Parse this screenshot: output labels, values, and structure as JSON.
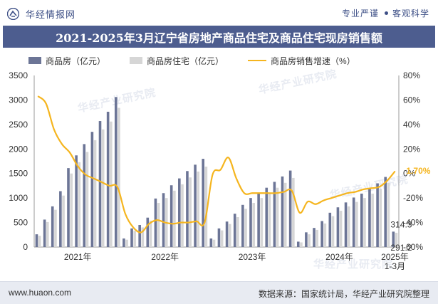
{
  "header": {
    "brand": "华经情报网",
    "slogan_left": "专业严谨",
    "slogan_right": "客观科学",
    "title": "2021-2025年3月辽宁省房地产商品住宅及商品住宅现房销售额"
  },
  "footer": {
    "url": "www.huaon.com",
    "source": "数据来源：国家统计局，华经产业研究院整理"
  },
  "watermarks": [
    "华经产业研究院",
    "华经产业研究院",
    "华经产业研究院",
    "华经产业研究院"
  ],
  "colors": {
    "commercial": "#6c7596",
    "residential": "#d6d6d6",
    "growth": "#f5b51f",
    "title_bg": "#4d5d8f",
    "brand": "#3d4f86"
  },
  "chart_data": {
    "type": "bar",
    "title": "2021-2025年3月辽宁省房地产商品住宅及商品住宅现房销售额",
    "categories": [
      "2021-01/02",
      "2021-03",
      "2021-04",
      "2021-05",
      "2021-06",
      "2021-07",
      "2021-08",
      "2021-09",
      "2021-10",
      "2021-11",
      "2021-12",
      "2022-01/02",
      "2022-03",
      "2022-04",
      "2022-05",
      "2022-06",
      "2022-07",
      "2022-08",
      "2022-09",
      "2022-10",
      "2022-11",
      "2022-12",
      "2023-01/02",
      "2023-03",
      "2023-04",
      "2023-05",
      "2023-06",
      "2023-07",
      "2023-08",
      "2023-09",
      "2023-10",
      "2023-11",
      "2023-12",
      "2024-01/02",
      "2024-03",
      "2024-04",
      "2024-05",
      "2024-06",
      "2024-07",
      "2024-08",
      "2024-09",
      "2024-10",
      "2024-11",
      "2024-12",
      "2025-01/02",
      "2025-03"
    ],
    "series": [
      {
        "name": "商品房（亿元）",
        "type": "bar",
        "axis": "left",
        "values": [
          260,
          560,
          830,
          1140,
          1610,
          1870,
          2100,
          2350,
          2570,
          2760,
          3060,
          175,
          380,
          450,
          600,
          990,
          1100,
          1260,
          1400,
          1550,
          1680,
          1800,
          175,
          380,
          520,
          680,
          860,
          1000,
          1100,
          1210,
          1330,
          1440,
          1560,
          110,
          300,
          390,
          530,
          700,
          810,
          910,
          1010,
          1090,
          1200,
          1300,
          1430,
          314.3
        ]
      },
      {
        "name": "商品房住宅（亿元）",
        "type": "bar",
        "axis": "left",
        "values": [
          230,
          510,
          760,
          1050,
          1500,
          1730,
          1940,
          2180,
          2400,
          2560,
          2840,
          150,
          330,
          400,
          540,
          900,
          1000,
          1150,
          1280,
          1420,
          1540,
          1640,
          150,
          340,
          470,
          610,
          780,
          900,
          1000,
          1100,
          1210,
          1310,
          1410,
          95,
          260,
          350,
          480,
          630,
          740,
          830,
          920,
          1000,
          1090,
          1190,
          1310,
          291.2
        ]
      },
      {
        "name": "商品房销售增速（%）",
        "type": "line",
        "axis": "right",
        "values": [
          63,
          57,
          36,
          24,
          17,
          6,
          -1,
          -4,
          -7,
          -10,
          -11,
          -33,
          -44,
          -48,
          -41,
          -38,
          -40,
          -41,
          -40,
          -40,
          -39,
          -40,
          -1,
          3,
          13,
          -4,
          -16,
          -16,
          -16,
          -16,
          -16,
          -15,
          -14,
          -32,
          -23,
          -25,
          -22,
          -20,
          -18,
          -16,
          -15,
          -13,
          -12,
          -11,
          -6,
          1.7
        ]
      }
    ],
    "xlabel": "",
    "ylabel_left": "",
    "ylabel_right": "",
    "ylim_left": [
      0,
      3500
    ],
    "ylim_right": [
      -60,
      80
    ],
    "yticks_left": [
      "0",
      "500",
      "1000",
      "1500",
      "2000",
      "2500",
      "3000",
      "3500"
    ],
    "yticks_right": [
      "-60%",
      "-40%",
      "-20%",
      "0%",
      "20%",
      "40%",
      "60%",
      "80%"
    ],
    "xticks": [
      {
        "label": "2021年",
        "index": 5
      },
      {
        "label": "2022年",
        "index": 16
      },
      {
        "label": "2023年",
        "index": 27
      },
      {
        "label": "2024年",
        "index": 38
      },
      {
        "label": "2025年\n1-3月",
        "index": 45
      }
    ],
    "annotations": [
      {
        "text": "314.3",
        "series": 0,
        "index": 45
      },
      {
        "text": "291.2",
        "series": 1,
        "index": 45
      },
      {
        "text": "1.70%",
        "series": 2,
        "index": 45
      }
    ],
    "grid": false,
    "legend": "top"
  }
}
